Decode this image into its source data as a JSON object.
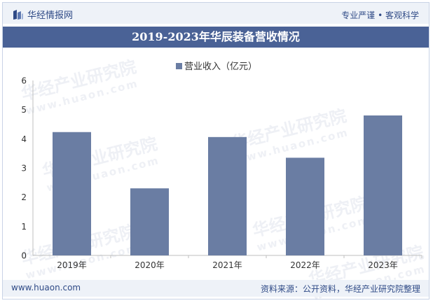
{
  "header": {
    "brand_name": "华经情报网",
    "slogan": "专业严谨 • 客观科学"
  },
  "title": "2019-2023年华辰装备营收情况",
  "watermark": {
    "text": "华经产业研究院",
    "url_text": "www.huaon.com"
  },
  "footer": {
    "url": "www.huaon.com",
    "source": "资料来源：公开资料，华经产业研究院整理"
  },
  "colors": {
    "bar": "#6a7da3",
    "title_bg": "#4a6296",
    "brand": "#2f4a86"
  },
  "chart_data": {
    "type": "bar",
    "title": "2019-2023年华辰装备营收情况",
    "legend": [
      "营业收入（亿元）"
    ],
    "categories": [
      "2019年",
      "2020年",
      "2021年",
      "2022年",
      "2023年"
    ],
    "series": [
      {
        "name": "营业收入（亿元）",
        "values": [
          4.23,
          2.3,
          4.06,
          3.35,
          4.8
        ]
      }
    ],
    "ylim": [
      0,
      6
    ],
    "yticks": [
      "0",
      "1",
      "2",
      "3",
      "4",
      "5",
      "6"
    ],
    "xlabel": "",
    "ylabel": "",
    "grid": false
  }
}
